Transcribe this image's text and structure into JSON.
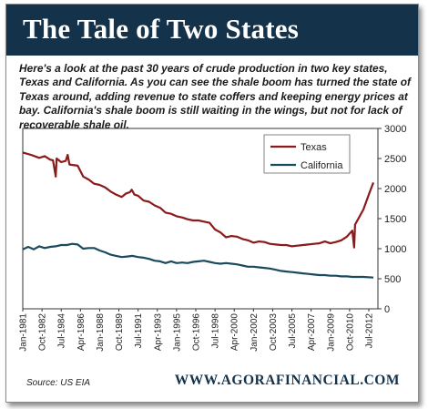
{
  "header": {
    "title": "The Tale of Two States"
  },
  "intro_text": "Here's a look at the past 30 years of crude production in two key states, Texas and California. As you can see the shale boom has turned the state of Texas around, adding revenue to state coffers and keeping energy prices at bay. California's shale boom is still waiting in the wings, but not for lack of recoverable shale oil.",
  "footer": {
    "source": "Source: US EIA",
    "website": "WWW.AGORAFINANCIAL.COM"
  },
  "colors": {
    "header_bg": "#14324a",
    "texas": "#8b1a1a",
    "california": "#1a4a5e"
  },
  "chart_data": {
    "type": "line",
    "title": "",
    "xlabel": "",
    "ylabel": "",
    "ylim": [
      0,
      3000
    ],
    "yticks": [
      0,
      500,
      1000,
      1500,
      2000,
      2500,
      3000
    ],
    "y_axis_side": "right",
    "grid": false,
    "legend_position": "top-left",
    "xlim": [
      "Jan-1981",
      "Jul-2012"
    ],
    "x_tick_labels": [
      "Jan-1981",
      "Oct-1982",
      "Jul-1984",
      "Apr-1986",
      "Jan-1988",
      "Oct-1989",
      "Jul-1991",
      "Apr-1993",
      "Jan-1995",
      "Oct-1996",
      "Jul-1998",
      "Apr-2000",
      "Jan-2002",
      "Oct-2003",
      "Jul-2005",
      "Apr-2007",
      "Jan-2009",
      "Oct-2010",
      "Jul-2012"
    ],
    "series": [
      {
        "name": "Texas",
        "color": "#8b1a1a",
        "points": [
          [
            "Jan-1981",
            2600
          ],
          [
            "Oct-1981",
            2560
          ],
          [
            "Jul-1982",
            2510
          ],
          [
            "Jan-1983",
            2540
          ],
          [
            "Jul-1983",
            2480
          ],
          [
            "Oct-1983",
            2470
          ],
          [
            "Jan-1984",
            2200
          ],
          [
            "Feb-1984",
            2500
          ],
          [
            "Jul-1984",
            2440
          ],
          [
            "Dec-1984",
            2460
          ],
          [
            "Feb-1985",
            2560
          ],
          [
            "Apr-1985",
            2400
          ],
          [
            "Jan-1986",
            2380
          ],
          [
            "Jul-1986",
            2200
          ],
          [
            "Jan-1987",
            2150
          ],
          [
            "Jul-1987",
            2080
          ],
          [
            "Jan-1988",
            2060
          ],
          [
            "Jul-1988",
            2020
          ],
          [
            "Jan-1989",
            1950
          ],
          [
            "Jul-1989",
            1900
          ],
          [
            "Jan-1990",
            1860
          ],
          [
            "Jun-1990",
            1920
          ],
          [
            "Oct-1990",
            1940
          ],
          [
            "Dec-1990",
            1980
          ],
          [
            "Mar-1991",
            1900
          ],
          [
            "Jul-1991",
            1880
          ],
          [
            "Jan-1992",
            1800
          ],
          [
            "Jul-1992",
            1780
          ],
          [
            "Jan-1993",
            1720
          ],
          [
            "Jul-1993",
            1680
          ],
          [
            "Jan-1994",
            1600
          ],
          [
            "Jul-1994",
            1580
          ],
          [
            "Jan-1995",
            1540
          ],
          [
            "Jul-1995",
            1520
          ],
          [
            "Jan-1996",
            1490
          ],
          [
            "Jul-1996",
            1470
          ],
          [
            "Jan-1997",
            1470
          ],
          [
            "Jul-1997",
            1450
          ],
          [
            "Jan-1998",
            1430
          ],
          [
            "Jul-1998",
            1320
          ],
          [
            "Jan-1999",
            1270
          ],
          [
            "Jul-1999",
            1190
          ],
          [
            "Jan-2000",
            1210
          ],
          [
            "Jul-2000",
            1200
          ],
          [
            "Jan-2001",
            1160
          ],
          [
            "Jul-2001",
            1140
          ],
          [
            "Jan-2002",
            1100
          ],
          [
            "Jul-2002",
            1120
          ],
          [
            "Jan-2003",
            1110
          ],
          [
            "Jul-2003",
            1080
          ],
          [
            "Jan-2004",
            1070
          ],
          [
            "Jul-2004",
            1060
          ],
          [
            "Jan-2005",
            1060
          ],
          [
            "Jul-2005",
            1040
          ],
          [
            "Jan-2006",
            1050
          ],
          [
            "Jul-2006",
            1060
          ],
          [
            "Jan-2007",
            1070
          ],
          [
            "Jul-2007",
            1080
          ],
          [
            "Jan-2008",
            1090
          ],
          [
            "Jul-2008",
            1120
          ],
          [
            "Jan-2009",
            1090
          ],
          [
            "Jul-2009",
            1110
          ],
          [
            "Jan-2010",
            1140
          ],
          [
            "Jul-2010",
            1200
          ],
          [
            "Jan-2011",
            1300
          ],
          [
            "Mar-2011",
            1020
          ],
          [
            "Apr-2011",
            1400
          ],
          [
            "Jan-2012",
            1650
          ],
          [
            "Jul-2012",
            1900
          ],
          [
            "Dec-2012",
            2100
          ]
        ]
      },
      {
        "name": "California",
        "color": "#1a4a5e",
        "points": [
          [
            "Jan-1981",
            990
          ],
          [
            "Jul-1981",
            1030
          ],
          [
            "Jan-1982",
            990
          ],
          [
            "Jul-1982",
            1040
          ],
          [
            "Jan-1983",
            1010
          ],
          [
            "Jul-1983",
            1030
          ],
          [
            "Jan-1984",
            1040
          ],
          [
            "Jul-1984",
            1060
          ],
          [
            "Jan-1985",
            1060
          ],
          [
            "Jul-1985",
            1080
          ],
          [
            "Jan-1986",
            1070
          ],
          [
            "Jul-1986",
            1000
          ],
          [
            "Jan-1987",
            1010
          ],
          [
            "Jul-1987",
            1010
          ],
          [
            "Jan-1988",
            970
          ],
          [
            "Jul-1988",
            940
          ],
          [
            "Jan-1989",
            900
          ],
          [
            "Jul-1989",
            880
          ],
          [
            "Jan-1990",
            860
          ],
          [
            "Jul-1990",
            870
          ],
          [
            "Jan-1991",
            880
          ],
          [
            "Jul-1991",
            860
          ],
          [
            "Jan-1992",
            850
          ],
          [
            "Jul-1992",
            830
          ],
          [
            "Jan-1993",
            800
          ],
          [
            "Jul-1993",
            790
          ],
          [
            "Jan-1994",
            760
          ],
          [
            "Jul-1994",
            790
          ],
          [
            "Jan-1995",
            760
          ],
          [
            "Jul-1995",
            770
          ],
          [
            "Jan-1996",
            760
          ],
          [
            "Jul-1996",
            780
          ],
          [
            "Jan-1997",
            790
          ],
          [
            "Jul-1997",
            800
          ],
          [
            "Jan-1998",
            780
          ],
          [
            "Jul-1998",
            760
          ],
          [
            "Jan-1999",
            750
          ],
          [
            "Jul-1999",
            760
          ],
          [
            "Jan-2000",
            750
          ],
          [
            "Jul-2000",
            740
          ],
          [
            "Jan-2001",
            720
          ],
          [
            "Jul-2001",
            700
          ],
          [
            "Jan-2002",
            700
          ],
          [
            "Jul-2002",
            690
          ],
          [
            "Jan-2003",
            680
          ],
          [
            "Jul-2003",
            670
          ],
          [
            "Jan-2004",
            650
          ],
          [
            "Jul-2004",
            630
          ],
          [
            "Jan-2005",
            620
          ],
          [
            "Jul-2005",
            610
          ],
          [
            "Jan-2006",
            600
          ],
          [
            "Jul-2006",
            590
          ],
          [
            "Jan-2007",
            580
          ],
          [
            "Jul-2007",
            570
          ],
          [
            "Jan-2008",
            560
          ],
          [
            "Jul-2008",
            560
          ],
          [
            "Jan-2009",
            550
          ],
          [
            "Jul-2009",
            550
          ],
          [
            "Jan-2010",
            540
          ],
          [
            "Jul-2010",
            540
          ],
          [
            "Jan-2011",
            530
          ],
          [
            "Jul-2011",
            530
          ],
          [
            "Jan-2012",
            530
          ],
          [
            "Dec-2012",
            520
          ]
        ]
      }
    ]
  }
}
